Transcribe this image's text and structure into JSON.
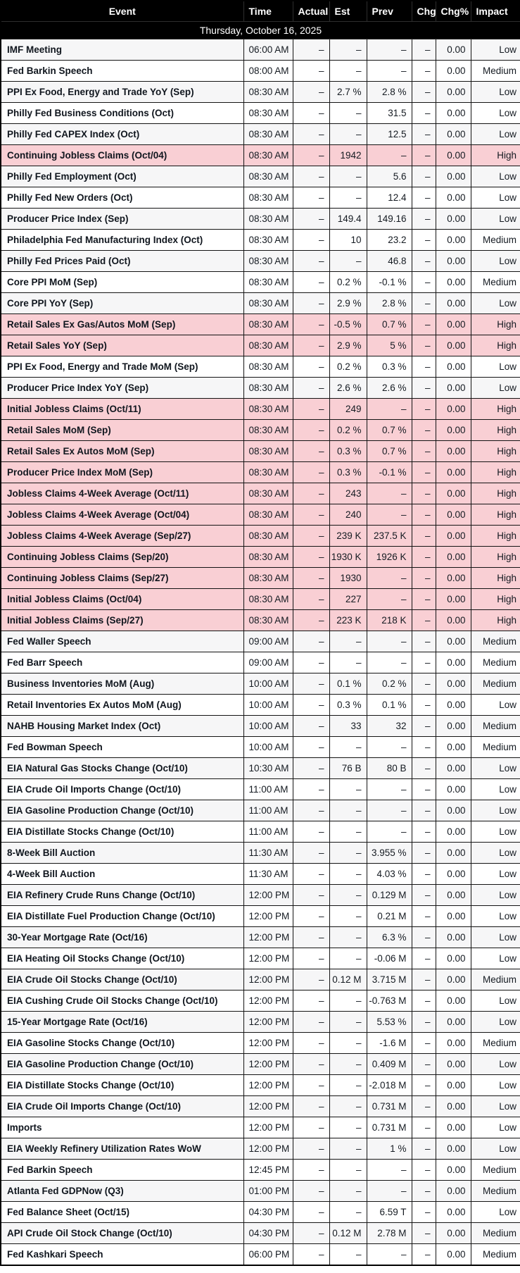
{
  "table": {
    "date_header": "Thursday, October 16, 2025",
    "columns": [
      {
        "key": "event",
        "label": "Event"
      },
      {
        "key": "time",
        "label": "Time"
      },
      {
        "key": "actual",
        "label": "Actual"
      },
      {
        "key": "est",
        "label": "Est"
      },
      {
        "key": "prev",
        "label": "Prev"
      },
      {
        "key": "chg",
        "label": "Chg"
      },
      {
        "key": "chg_pct",
        "label": "Chg%"
      },
      {
        "key": "impact",
        "label": "Impact"
      }
    ],
    "colors": {
      "header_bg": "#000000",
      "header_text": "#ffffff",
      "high_impact_row_bg": "#f9cfd4",
      "alt_row_bg": "#f6f6f7",
      "row_bg": "#ffffff",
      "border": "#141414",
      "text": "#141a21"
    },
    "rows": [
      {
        "event": "IMF Meeting",
        "time": "06:00 AM",
        "actual": "–",
        "est": "–",
        "prev": "–",
        "chg": "–",
        "chg_pct": "0.00",
        "impact": "Low"
      },
      {
        "event": "Fed Barkin Speech",
        "time": "08:00 AM",
        "actual": "–",
        "est": "–",
        "prev": "–",
        "chg": "–",
        "chg_pct": "0.00",
        "impact": "Medium"
      },
      {
        "event": "PPI Ex Food, Energy and Trade YoY (Sep)",
        "time": "08:30 AM",
        "actual": "–",
        "est": "2.7 %",
        "prev": "2.8 %",
        "chg": "–",
        "chg_pct": "0.00",
        "impact": "Low"
      },
      {
        "event": "Philly Fed Business Conditions (Oct)",
        "time": "08:30 AM",
        "actual": "–",
        "est": "–",
        "prev": "31.5",
        "chg": "–",
        "chg_pct": "0.00",
        "impact": "Low"
      },
      {
        "event": "Philly Fed CAPEX Index (Oct)",
        "time": "08:30 AM",
        "actual": "–",
        "est": "–",
        "prev": "12.5",
        "chg": "–",
        "chg_pct": "0.00",
        "impact": "Low"
      },
      {
        "event": "Continuing Jobless Claims (Oct/04)",
        "time": "08:30 AM",
        "actual": "–",
        "est": "1942",
        "prev": "–",
        "chg": "–",
        "chg_pct": "0.00",
        "impact": "High"
      },
      {
        "event": "Philly Fed Employment (Oct)",
        "time": "08:30 AM",
        "actual": "–",
        "est": "–",
        "prev": "5.6",
        "chg": "–",
        "chg_pct": "0.00",
        "impact": "Low"
      },
      {
        "event": "Philly Fed New Orders (Oct)",
        "time": "08:30 AM",
        "actual": "–",
        "est": "–",
        "prev": "12.4",
        "chg": "–",
        "chg_pct": "0.00",
        "impact": "Low"
      },
      {
        "event": "Producer Price Index (Sep)",
        "time": "08:30 AM",
        "actual": "–",
        "est": "149.4",
        "prev": "149.16",
        "chg": "–",
        "chg_pct": "0.00",
        "impact": "Low"
      },
      {
        "event": "Philadelphia Fed Manufacturing Index (Oct)",
        "time": "08:30 AM",
        "actual": "–",
        "est": "10",
        "prev": "23.2",
        "chg": "–",
        "chg_pct": "0.00",
        "impact": "Medium"
      },
      {
        "event": "Philly Fed Prices Paid (Oct)",
        "time": "08:30 AM",
        "actual": "–",
        "est": "–",
        "prev": "46.8",
        "chg": "–",
        "chg_pct": "0.00",
        "impact": "Low"
      },
      {
        "event": "Core PPI MoM (Sep)",
        "time": "08:30 AM",
        "actual": "–",
        "est": "0.2 %",
        "prev": "-0.1 %",
        "chg": "–",
        "chg_pct": "0.00",
        "impact": "Medium"
      },
      {
        "event": "Core PPI YoY (Sep)",
        "time": "08:30 AM",
        "actual": "–",
        "est": "2.9 %",
        "prev": "2.8 %",
        "chg": "–",
        "chg_pct": "0.00",
        "impact": "Low"
      },
      {
        "event": "Retail Sales Ex Gas/Autos MoM (Sep)",
        "time": "08:30 AM",
        "actual": "–",
        "est": "-0.5 %",
        "prev": "0.7 %",
        "chg": "–",
        "chg_pct": "0.00",
        "impact": "High"
      },
      {
        "event": "Retail Sales YoY (Sep)",
        "time": "08:30 AM",
        "actual": "–",
        "est": "2.9 %",
        "prev": "5 %",
        "chg": "–",
        "chg_pct": "0.00",
        "impact": "High"
      },
      {
        "event": "PPI Ex Food, Energy and Trade MoM (Sep)",
        "time": "08:30 AM",
        "actual": "–",
        "est": "0.2 %",
        "prev": "0.3 %",
        "chg": "–",
        "chg_pct": "0.00",
        "impact": "Low"
      },
      {
        "event": "Producer Price Index YoY (Sep)",
        "time": "08:30 AM",
        "actual": "–",
        "est": "2.6 %",
        "prev": "2.6 %",
        "chg": "–",
        "chg_pct": "0.00",
        "impact": "Low"
      },
      {
        "event": "Initial Jobless Claims (Oct/11)",
        "time": "08:30 AM",
        "actual": "–",
        "est": "249",
        "prev": "–",
        "chg": "–",
        "chg_pct": "0.00",
        "impact": "High"
      },
      {
        "event": "Retail Sales MoM (Sep)",
        "time": "08:30 AM",
        "actual": "–",
        "est": "0.2 %",
        "prev": "0.7 %",
        "chg": "–",
        "chg_pct": "0.00",
        "impact": "High"
      },
      {
        "event": "Retail Sales Ex Autos MoM (Sep)",
        "time": "08:30 AM",
        "actual": "–",
        "est": "0.3 %",
        "prev": "0.7 %",
        "chg": "–",
        "chg_pct": "0.00",
        "impact": "High"
      },
      {
        "event": "Producer Price Index MoM (Sep)",
        "time": "08:30 AM",
        "actual": "–",
        "est": "0.3 %",
        "prev": "-0.1 %",
        "chg": "–",
        "chg_pct": "0.00",
        "impact": "High"
      },
      {
        "event": "Jobless Claims 4-Week Average (Oct/11)",
        "time": "08:30 AM",
        "actual": "–",
        "est": "243",
        "prev": "–",
        "chg": "–",
        "chg_pct": "0.00",
        "impact": "High"
      },
      {
        "event": "Jobless Claims 4-Week Average (Oct/04)",
        "time": "08:30 AM",
        "actual": "–",
        "est": "240",
        "prev": "–",
        "chg": "–",
        "chg_pct": "0.00",
        "impact": "High"
      },
      {
        "event": "Jobless Claims 4-Week Average (Sep/27)",
        "time": "08:30 AM",
        "actual": "–",
        "est": "239 K",
        "prev": "237.5 K",
        "chg": "–",
        "chg_pct": "0.00",
        "impact": "High"
      },
      {
        "event": "Continuing Jobless Claims (Sep/20)",
        "time": "08:30 AM",
        "actual": "–",
        "est": "1930 K",
        "prev": "1926 K",
        "chg": "–",
        "chg_pct": "0.00",
        "impact": "High"
      },
      {
        "event": "Continuing Jobless Claims (Sep/27)",
        "time": "08:30 AM",
        "actual": "–",
        "est": "1930",
        "prev": "–",
        "chg": "–",
        "chg_pct": "0.00",
        "impact": "High"
      },
      {
        "event": "Initial Jobless Claims (Oct/04)",
        "time": "08:30 AM",
        "actual": "–",
        "est": "227",
        "prev": "–",
        "chg": "–",
        "chg_pct": "0.00",
        "impact": "High"
      },
      {
        "event": "Initial Jobless Claims (Sep/27)",
        "time": "08:30 AM",
        "actual": "–",
        "est": "223 K",
        "prev": "218 K",
        "chg": "–",
        "chg_pct": "0.00",
        "impact": "High"
      },
      {
        "event": "Fed Waller Speech",
        "time": "09:00 AM",
        "actual": "–",
        "est": "–",
        "prev": "–",
        "chg": "–",
        "chg_pct": "0.00",
        "impact": "Medium"
      },
      {
        "event": "Fed Barr Speech",
        "time": "09:00 AM",
        "actual": "–",
        "est": "–",
        "prev": "–",
        "chg": "–",
        "chg_pct": "0.00",
        "impact": "Medium"
      },
      {
        "event": "Business Inventories MoM (Aug)",
        "time": "10:00 AM",
        "actual": "–",
        "est": "0.1 %",
        "prev": "0.2 %",
        "chg": "–",
        "chg_pct": "0.00",
        "impact": "Medium"
      },
      {
        "event": "Retail Inventories Ex Autos MoM (Aug)",
        "time": "10:00 AM",
        "actual": "–",
        "est": "0.3 %",
        "prev": "0.1 %",
        "chg": "–",
        "chg_pct": "0.00",
        "impact": "Low"
      },
      {
        "event": "NAHB Housing Market Index (Oct)",
        "time": "10:00 AM",
        "actual": "–",
        "est": "33",
        "prev": "32",
        "chg": "–",
        "chg_pct": "0.00",
        "impact": "Medium"
      },
      {
        "event": "Fed Bowman Speech",
        "time": "10:00 AM",
        "actual": "–",
        "est": "–",
        "prev": "–",
        "chg": "–",
        "chg_pct": "0.00",
        "impact": "Medium"
      },
      {
        "event": "EIA Natural Gas Stocks Change (Oct/10)",
        "time": "10:30 AM",
        "actual": "–",
        "est": "76 B",
        "prev": "80 B",
        "chg": "–",
        "chg_pct": "0.00",
        "impact": "Low"
      },
      {
        "event": "EIA Crude Oil Imports Change (Oct/10)",
        "time": "11:00 AM",
        "actual": "–",
        "est": "–",
        "prev": "–",
        "chg": "–",
        "chg_pct": "0.00",
        "impact": "Low"
      },
      {
        "event": "EIA Gasoline Production Change (Oct/10)",
        "time": "11:00 AM",
        "actual": "–",
        "est": "–",
        "prev": "–",
        "chg": "–",
        "chg_pct": "0.00",
        "impact": "Low"
      },
      {
        "event": "EIA Distillate Stocks Change (Oct/10)",
        "time": "11:00 AM",
        "actual": "–",
        "est": "–",
        "prev": "–",
        "chg": "–",
        "chg_pct": "0.00",
        "impact": "Low"
      },
      {
        "event": "8-Week Bill Auction",
        "time": "11:30 AM",
        "actual": "–",
        "est": "–",
        "prev": "3.955 %",
        "chg": "–",
        "chg_pct": "0.00",
        "impact": "Low"
      },
      {
        "event": "4-Week Bill Auction",
        "time": "11:30 AM",
        "actual": "–",
        "est": "–",
        "prev": "4.03 %",
        "chg": "–",
        "chg_pct": "0.00",
        "impact": "Low"
      },
      {
        "event": "EIA Refinery Crude Runs Change (Oct/10)",
        "time": "12:00 PM",
        "actual": "–",
        "est": "–",
        "prev": "0.129 M",
        "chg": "–",
        "chg_pct": "0.00",
        "impact": "Low"
      },
      {
        "event": "EIA Distillate Fuel Production Change (Oct/10)",
        "time": "12:00 PM",
        "actual": "–",
        "est": "–",
        "prev": "0.21 M",
        "chg": "–",
        "chg_pct": "0.00",
        "impact": "Low"
      },
      {
        "event": "30-Year Mortgage Rate (Oct/16)",
        "time": "12:00 PM",
        "actual": "–",
        "est": "–",
        "prev": "6.3 %",
        "chg": "–",
        "chg_pct": "0.00",
        "impact": "Low"
      },
      {
        "event": "EIA Heating Oil Stocks Change (Oct/10)",
        "time": "12:00 PM",
        "actual": "–",
        "est": "–",
        "prev": "-0.06 M",
        "chg": "–",
        "chg_pct": "0.00",
        "impact": "Low"
      },
      {
        "event": "EIA Crude Oil Stocks Change (Oct/10)",
        "time": "12:00 PM",
        "actual": "–",
        "est": "0.12 M",
        "prev": "3.715 M",
        "chg": "–",
        "chg_pct": "0.00",
        "impact": "Medium"
      },
      {
        "event": "EIA Cushing Crude Oil Stocks Change (Oct/10)",
        "time": "12:00 PM",
        "actual": "–",
        "est": "–",
        "prev": "-0.763 M",
        "chg": "–",
        "chg_pct": "0.00",
        "impact": "Low"
      },
      {
        "event": "15-Year Mortgage Rate (Oct/16)",
        "time": "12:00 PM",
        "actual": "–",
        "est": "–",
        "prev": "5.53 %",
        "chg": "–",
        "chg_pct": "0.00",
        "impact": "Low"
      },
      {
        "event": "EIA Gasoline Stocks Change (Oct/10)",
        "time": "12:00 PM",
        "actual": "–",
        "est": "–",
        "prev": "-1.6 M",
        "chg": "–",
        "chg_pct": "0.00",
        "impact": "Medium"
      },
      {
        "event": "EIA Gasoline Production Change (Oct/10)",
        "time": "12:00 PM",
        "actual": "–",
        "est": "–",
        "prev": "0.409 M",
        "chg": "–",
        "chg_pct": "0.00",
        "impact": "Low"
      },
      {
        "event": "EIA Distillate Stocks Change (Oct/10)",
        "time": "12:00 PM",
        "actual": "–",
        "est": "–",
        "prev": "-2.018 M",
        "chg": "–",
        "chg_pct": "0.00",
        "impact": "Low"
      },
      {
        "event": "EIA Crude Oil Imports Change (Oct/10)",
        "time": "12:00 PM",
        "actual": "–",
        "est": "–",
        "prev": "0.731 M",
        "chg": "–",
        "chg_pct": "0.00",
        "impact": "Low"
      },
      {
        "event": "Imports",
        "time": "12:00 PM",
        "actual": "–",
        "est": "–",
        "prev": "0.731 M",
        "chg": "–",
        "chg_pct": "0.00",
        "impact": "Low"
      },
      {
        "event": "EIA Weekly Refinery Utilization Rates WoW",
        "time": "12:00 PM",
        "actual": "–",
        "est": "–",
        "prev": "1 %",
        "chg": "–",
        "chg_pct": "0.00",
        "impact": "Low"
      },
      {
        "event": "Fed Barkin Speech",
        "time": "12:45 PM",
        "actual": "–",
        "est": "–",
        "prev": "–",
        "chg": "–",
        "chg_pct": "0.00",
        "impact": "Medium"
      },
      {
        "event": "Atlanta Fed GDPNow (Q3)",
        "time": "01:00 PM",
        "actual": "–",
        "est": "–",
        "prev": "–",
        "chg": "–",
        "chg_pct": "0.00",
        "impact": "Medium"
      },
      {
        "event": "Fed Balance Sheet (Oct/15)",
        "time": "04:30 PM",
        "actual": "–",
        "est": "–",
        "prev": "6.59 T",
        "chg": "–",
        "chg_pct": "0.00",
        "impact": "Low"
      },
      {
        "event": "API Crude Oil Stock Change (Oct/10)",
        "time": "04:30 PM",
        "actual": "–",
        "est": "0.12 M",
        "prev": "2.78 M",
        "chg": "–",
        "chg_pct": "0.00",
        "impact": "Medium"
      },
      {
        "event": "Fed Kashkari Speech",
        "time": "06:00 PM",
        "actual": "–",
        "est": "–",
        "prev": "–",
        "chg": "–",
        "chg_pct": "0.00",
        "impact": "Medium"
      }
    ]
  }
}
